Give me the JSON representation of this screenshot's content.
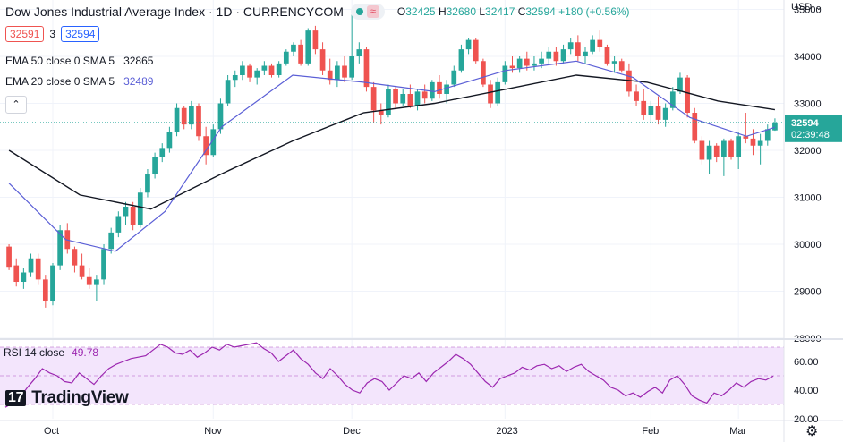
{
  "header": {
    "title": "Dow Jones Industrial Average Index · 1D · CURRENCYCOM",
    "ohlc": {
      "o_label": "O",
      "o": "32425",
      "h_label": "H",
      "h": "32680",
      "l_label": "L",
      "l": "32417",
      "c_label": "C",
      "c": "32594",
      "change": "+180 (+0.56%)"
    },
    "sell_price": "32591",
    "spread": "3",
    "buy_price": "32594",
    "currency_label": "USD"
  },
  "indicators": {
    "ema50_label": "EMA 50 close 0 SMA 5",
    "ema50_value": "32865",
    "ema20_label": "EMA 20 close 0 SMA 5",
    "ema20_value": "32489",
    "rsi_label": "RSI 14 close",
    "rsi_value": "49.78"
  },
  "price_axis": {
    "ticks": [
      "35000",
      "34000",
      "33000",
      "32000",
      "31000",
      "30000",
      "29000",
      "28000"
    ],
    "last_price": "32594",
    "countdown": "02:39:48"
  },
  "rsi_axis": {
    "ticks": [
      "60.00",
      "40.00",
      "20.00"
    ]
  },
  "time_axis": {
    "ticks": [
      "Oct",
      "Nov",
      "Dec",
      "2023",
      "Feb",
      "Mar"
    ]
  },
  "logo": {
    "text": "TradingView"
  },
  "colors": {
    "up": "#26a69a",
    "down": "#ef5350",
    "ema50": "#131722",
    "ema20": "#5b5fd6",
    "rsi": "#9c27b0",
    "rsi_band": "#f3e5fc"
  },
  "chart_data": {
    "type": "candlestick",
    "title": "Dow Jones Industrial Average Index · 1D · CURRENCYCOM",
    "ylim": [
      28000,
      35200
    ],
    "x_ticks": [
      "Oct",
      "Nov",
      "Dec",
      "2023",
      "Feb",
      "Mar"
    ],
    "candles_ohlc": [
      [
        29950,
        30000,
        29450,
        29520
      ],
      [
        29550,
        29700,
        29100,
        29200
      ],
      [
        29200,
        29500,
        29050,
        29400
      ],
      [
        29400,
        29800,
        29300,
        29700
      ],
      [
        29700,
        29800,
        29150,
        29250
      ],
      [
        29250,
        29350,
        28650,
        28800
      ],
      [
        28800,
        29600,
        28700,
        29550
      ],
      [
        29550,
        30400,
        29450,
        30300
      ],
      [
        30300,
        30450,
        29800,
        29900
      ],
      [
        29900,
        29950,
        29400,
        29550
      ],
      [
        29550,
        29800,
        29250,
        29300
      ],
      [
        29300,
        29500,
        29050,
        29150
      ],
      [
        29150,
        29350,
        28800,
        29250
      ],
      [
        29250,
        30000,
        29150,
        29900
      ],
      [
        29900,
        30350,
        29800,
        30250
      ],
      [
        30250,
        30700,
        30150,
        30600
      ],
      [
        30600,
        30900,
        30400,
        30800
      ],
      [
        30800,
        30900,
        30300,
        30400
      ],
      [
        30400,
        31200,
        30350,
        31100
      ],
      [
        31100,
        31600,
        31000,
        31500
      ],
      [
        31500,
        31950,
        31400,
        31850
      ],
      [
        31850,
        32150,
        31750,
        32050
      ],
      [
        32050,
        32500,
        31950,
        32400
      ],
      [
        32400,
        33000,
        32300,
        32900
      ],
      [
        32900,
        32950,
        32450,
        32550
      ],
      [
        32550,
        33050,
        32450,
        32950
      ],
      [
        32950,
        33000,
        32200,
        32300
      ],
      [
        32300,
        32500,
        31700,
        31900
      ],
      [
        31900,
        32550,
        31850,
        32450
      ],
      [
        32450,
        33100,
        32350,
        33000
      ],
      [
        33000,
        33600,
        32950,
        33500
      ],
      [
        33500,
        33700,
        33350,
        33600
      ],
      [
        33600,
        33900,
        33500,
        33800
      ],
      [
        33800,
        33850,
        33450,
        33550
      ],
      [
        33550,
        33750,
        33400,
        33700
      ],
      [
        33700,
        33900,
        33600,
        33800
      ],
      [
        33800,
        33850,
        33550,
        33600
      ],
      [
        33600,
        33900,
        33550,
        33850
      ],
      [
        33850,
        34150,
        33800,
        34100
      ],
      [
        34100,
        34300,
        34000,
        34250
      ],
      [
        34250,
        34350,
        33800,
        33850
      ],
      [
        33850,
        34600,
        33800,
        34550
      ],
      [
        34550,
        34650,
        34050,
        34150
      ],
      [
        34150,
        34300,
        33600,
        33700
      ],
      [
        33700,
        33950,
        33400,
        33500
      ],
      [
        33500,
        33900,
        33350,
        33800
      ],
      [
        33800,
        34000,
        33450,
        33550
      ],
      [
        33550,
        34900,
        33500,
        34000
      ],
      [
        34000,
        34300,
        33850,
        34150
      ],
      [
        34150,
        34200,
        33250,
        33350
      ],
      [
        33350,
        33450,
        32600,
        32850
      ],
      [
        32850,
        33000,
        32550,
        32750
      ],
      [
        32750,
        33400,
        32700,
        33300
      ],
      [
        33300,
        33350,
        32900,
        33000
      ],
      [
        33000,
        33300,
        32950,
        33200
      ],
      [
        33200,
        33400,
        32900,
        32950
      ],
      [
        32950,
        33300,
        32850,
        33250
      ],
      [
        33250,
        33400,
        33000,
        33100
      ],
      [
        33100,
        33500,
        33050,
        33450
      ],
      [
        33450,
        33600,
        33100,
        33200
      ],
      [
        33200,
        33500,
        33000,
        33400
      ],
      [
        33400,
        33800,
        33350,
        33700
      ],
      [
        33700,
        34250,
        33650,
        34150
      ],
      [
        34150,
        34400,
        34050,
        34350
      ],
      [
        34350,
        34400,
        33850,
        33900
      ],
      [
        33900,
        33950,
        33350,
        33400
      ],
      [
        33400,
        33500,
        32900,
        33000
      ],
      [
        33000,
        33550,
        32950,
        33450
      ],
      [
        33450,
        33900,
        33400,
        33800
      ],
      [
        33800,
        34000,
        33650,
        33750
      ],
      [
        33750,
        34000,
        33650,
        33950
      ],
      [
        33950,
        34100,
        33700,
        33800
      ],
      [
        33800,
        34000,
        33700,
        33850
      ],
      [
        33850,
        34100,
        33750,
        33950
      ],
      [
        33950,
        34200,
        33850,
        34100
      ],
      [
        34100,
        34200,
        33800,
        33900
      ],
      [
        33900,
        34250,
        33850,
        34150
      ],
      [
        34150,
        34400,
        34050,
        34300
      ],
      [
        34300,
        34450,
        33900,
        34000
      ],
      [
        34000,
        34200,
        33850,
        34100
      ],
      [
        34100,
        34450,
        34050,
        34350
      ],
      [
        34350,
        34550,
        34100,
        34200
      ],
      [
        34200,
        34250,
        33800,
        33850
      ],
      [
        33850,
        34000,
        33650,
        33900
      ],
      [
        33900,
        33950,
        33650,
        33700
      ],
      [
        33700,
        33850,
        33150,
        33250
      ],
      [
        33250,
        33400,
        32950,
        33050
      ],
      [
        33050,
        33300,
        32650,
        32750
      ],
      [
        32750,
        33050,
        32600,
        32950
      ],
      [
        32950,
        33150,
        32550,
        32650
      ],
      [
        32650,
        33000,
        32500,
        32900
      ],
      [
        32900,
        33350,
        32850,
        33250
      ],
      [
        33250,
        33650,
        33200,
        33550
      ],
      [
        33550,
        33600,
        32700,
        32800
      ],
      [
        32800,
        32900,
        32150,
        32200
      ],
      [
        32200,
        32300,
        31700,
        31800
      ],
      [
        31800,
        32200,
        31500,
        32100
      ],
      [
        32100,
        32150,
        31750,
        31850
      ],
      [
        31850,
        32250,
        31450,
        32200
      ],
      [
        32200,
        32250,
        31800,
        31850
      ],
      [
        31850,
        32400,
        31600,
        32300
      ],
      [
        32300,
        32800,
        32150,
        32250
      ],
      [
        32250,
        32450,
        31900,
        32100
      ],
      [
        32100,
        32350,
        31700,
        32200
      ],
      [
        32200,
        32550,
        32100,
        32450
      ],
      [
        32425,
        32680,
        32417,
        32594
      ]
    ],
    "series": [
      {
        "name": "EMA 50 close 0 SMA 5",
        "points": [
          [
            0,
            32000
          ],
          [
            10,
            31050
          ],
          [
            20,
            30750
          ],
          [
            30,
            31500
          ],
          [
            40,
            32200
          ],
          [
            50,
            32800
          ],
          [
            60,
            33000
          ],
          [
            70,
            33300
          ],
          [
            80,
            33600
          ],
          [
            90,
            33450
          ],
          [
            100,
            33050
          ],
          [
            108,
            32865
          ]
        ]
      },
      {
        "name": "EMA 20 close 0 SMA 5",
        "points": [
          [
            0,
            31300
          ],
          [
            8,
            30100
          ],
          [
            15,
            29850
          ],
          [
            22,
            30700
          ],
          [
            30,
            32500
          ],
          [
            40,
            33600
          ],
          [
            50,
            33450
          ],
          [
            60,
            33250
          ],
          [
            70,
            33700
          ],
          [
            80,
            33900
          ],
          [
            88,
            33550
          ],
          [
            96,
            32700
          ],
          [
            104,
            32300
          ],
          [
            108,
            32489
          ]
        ]
      },
      {
        "name": "RSI 14 close",
        "ylim": [
          20,
          75
        ],
        "values": [
          28,
          31,
          35,
          42,
          48,
          55,
          52,
          50,
          46,
          45,
          52,
          48,
          44,
          50,
          55,
          58,
          60,
          62,
          63,
          64,
          68,
          72,
          70,
          66,
          65,
          68,
          63,
          66,
          70,
          68,
          72,
          70,
          71,
          72,
          73,
          69,
          66,
          60,
          64,
          68,
          62,
          58,
          52,
          48,
          55,
          50,
          44,
          40,
          38,
          45,
          48,
          46,
          40,
          45,
          50,
          48,
          52,
          46,
          52,
          56,
          60,
          65,
          62,
          58,
          52,
          46,
          42,
          48,
          50,
          52,
          56,
          54,
          57,
          58,
          55,
          57,
          53,
          56,
          58,
          53,
          50,
          47,
          42,
          40,
          36,
          38,
          35,
          39,
          42,
          38,
          47,
          50,
          44,
          36,
          33,
          31,
          38,
          36,
          40,
          45,
          42,
          46,
          48,
          47,
          49.78
        ]
      }
    ]
  }
}
